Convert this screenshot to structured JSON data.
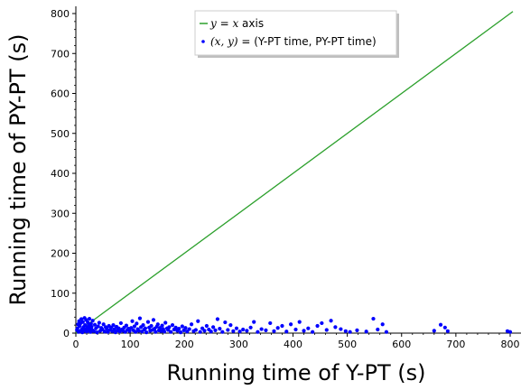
{
  "chart_data": {
    "type": "scatter",
    "xlabel": "Running time of Y-PT (s)",
    "ylabel": "Running time of PY-PT (s)",
    "xlim": [
      0,
      800
    ],
    "ylim": [
      0,
      820
    ],
    "xticks": [
      0,
      100,
      200,
      300,
      400,
      500,
      600,
      700,
      800
    ],
    "yticks": [
      0,
      100,
      200,
      300,
      400,
      500,
      600,
      700,
      800
    ],
    "grid": false,
    "legend_position": "top-center",
    "legend": [
      {
        "math": "y = x",
        "text": " axis"
      },
      {
        "math": "(x, y) =",
        "text": " (Y-PT time, PY-PT time)"
      }
    ],
    "colors": {
      "line": "#2ca02c",
      "points": "#0000ff"
    },
    "line": {
      "name": "y = x axis",
      "x": [
        0,
        805
      ],
      "y": [
        0,
        805
      ]
    },
    "points": [
      [
        2,
        8
      ],
      [
        3,
        12
      ],
      [
        4,
        22
      ],
      [
        5,
        3
      ],
      [
        6,
        30
      ],
      [
        7,
        18
      ],
      [
        8,
        5
      ],
      [
        9,
        25
      ],
      [
        10,
        35
      ],
      [
        11,
        10
      ],
      [
        12,
        2
      ],
      [
        13,
        28
      ],
      [
        14,
        15
      ],
      [
        15,
        6
      ],
      [
        16,
        38
      ],
      [
        17,
        20
      ],
      [
        18,
        9
      ],
      [
        19,
        33
      ],
      [
        20,
        4
      ],
      [
        21,
        14
      ],
      [
        22,
        27
      ],
      [
        23,
        7
      ],
      [
        24,
        19
      ],
      [
        25,
        36
      ],
      [
        26,
        11
      ],
      [
        27,
        3
      ],
      [
        28,
        23
      ],
      [
        29,
        16
      ],
      [
        30,
        8
      ],
      [
        31,
        31
      ],
      [
        33,
        5
      ],
      [
        35,
        21
      ],
      [
        37,
        12
      ],
      [
        39,
        2
      ],
      [
        41,
        17
      ],
      [
        43,
        26
      ],
      [
        45,
        6
      ],
      [
        47,
        13
      ],
      [
        49,
        9
      ],
      [
        51,
        22
      ],
      [
        53,
        4
      ],
      [
        55,
        15
      ],
      [
        57,
        11
      ],
      [
        59,
        3
      ],
      [
        61,
        18
      ],
      [
        63,
        8
      ],
      [
        65,
        14
      ],
      [
        67,
        5
      ],
      [
        69,
        20
      ],
      [
        71,
        10
      ],
      [
        73,
        2
      ],
      [
        75,
        16
      ],
      [
        77,
        7
      ],
      [
        79,
        12
      ],
      [
        81,
        4
      ],
      [
        83,
        25
      ],
      [
        85,
        9
      ],
      [
        87,
        6
      ],
      [
        89,
        14
      ],
      [
        91,
        3
      ],
      [
        93,
        19
      ],
      [
        95,
        8
      ],
      [
        97,
        11
      ],
      [
        99,
        5
      ],
      [
        102,
        13
      ],
      [
        104,
        30
      ],
      [
        106,
        7
      ],
      [
        108,
        17
      ],
      [
        110,
        3
      ],
      [
        112,
        24
      ],
      [
        114,
        10
      ],
      [
        116,
        6
      ],
      [
        118,
        37
      ],
      [
        120,
        15
      ],
      [
        122,
        4
      ],
      [
        124,
        20
      ],
      [
        126,
        9
      ],
      [
        128,
        12
      ],
      [
        130,
        2
      ],
      [
        133,
        28
      ],
      [
        135,
        14
      ],
      [
        137,
        6
      ],
      [
        139,
        18
      ],
      [
        141,
        8
      ],
      [
        143,
        33
      ],
      [
        145,
        11
      ],
      [
        147,
        3
      ],
      [
        149,
        16
      ],
      [
        151,
        22
      ],
      [
        153,
        7
      ],
      [
        155,
        13
      ],
      [
        157,
        5
      ],
      [
        159,
        19
      ],
      [
        161,
        10
      ],
      [
        163,
        4
      ],
      [
        165,
        26
      ],
      [
        168,
        12
      ],
      [
        170,
        8
      ],
      [
        172,
        15
      ],
      [
        175,
        3
      ],
      [
        178,
        20
      ],
      [
        181,
        9
      ],
      [
        184,
        14
      ],
      [
        187,
        6
      ],
      [
        190,
        11
      ],
      [
        193,
        2
      ],
      [
        196,
        17
      ],
      [
        199,
        7
      ],
      [
        202,
        13
      ],
      [
        205,
        4
      ],
      [
        209,
        10
      ],
      [
        213,
        22
      ],
      [
        217,
        5
      ],
      [
        221,
        8
      ],
      [
        225,
        30
      ],
      [
        229,
        3
      ],
      [
        233,
        12
      ],
      [
        237,
        6
      ],
      [
        241,
        18
      ],
      [
        245,
        9
      ],
      [
        249,
        4
      ],
      [
        253,
        15
      ],
      [
        257,
        7
      ],
      [
        261,
        35
      ],
      [
        265,
        11
      ],
      [
        270,
        3
      ],
      [
        275,
        27
      ],
      [
        280,
        8
      ],
      [
        285,
        20
      ],
      [
        290,
        5
      ],
      [
        296,
        12
      ],
      [
        302,
        4
      ],
      [
        308,
        9
      ],
      [
        315,
        6
      ],
      [
        322,
        14
      ],
      [
        328,
        28
      ],
      [
        335,
        3
      ],
      [
        342,
        10
      ],
      [
        350,
        7
      ],
      [
        358,
        25
      ],
      [
        365,
        5
      ],
      [
        372,
        13
      ],
      [
        380,
        18
      ],
      [
        388,
        4
      ],
      [
        396,
        22
      ],
      [
        405,
        9
      ],
      [
        412,
        28
      ],
      [
        420,
        6
      ],
      [
        428,
        12
      ],
      [
        436,
        3
      ],
      [
        445,
        18
      ],
      [
        453,
        25
      ],
      [
        462,
        8
      ],
      [
        470,
        31
      ],
      [
        478,
        15
      ],
      [
        488,
        10
      ],
      [
        497,
        5
      ],
      [
        505,
        3
      ],
      [
        518,
        7
      ],
      [
        535,
        4
      ],
      [
        548,
        36
      ],
      [
        556,
        9
      ],
      [
        565,
        22
      ],
      [
        572,
        3
      ],
      [
        660,
        6
      ],
      [
        672,
        21
      ],
      [
        680,
        14
      ],
      [
        685,
        5
      ],
      [
        795,
        5
      ],
      [
        800,
        3
      ]
    ]
  }
}
